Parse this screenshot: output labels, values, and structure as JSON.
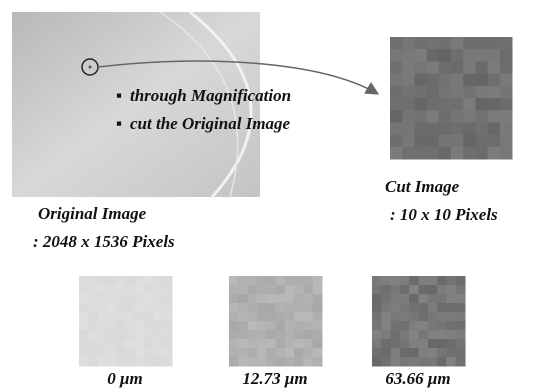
{
  "original_image": {
    "label": "Original Image",
    "size": ": 2048 x 1536 Pixels"
  },
  "steps": [
    "through Magnification",
    "cut the Original Image"
  ],
  "cut_image": {
    "label": "Cut Image",
    "size": ": 10 x 10 Pixels"
  },
  "samples": [
    {
      "label": "0 μm"
    },
    {
      "label": "12.73 μm"
    },
    {
      "label": "63.66 μm"
    }
  ]
}
